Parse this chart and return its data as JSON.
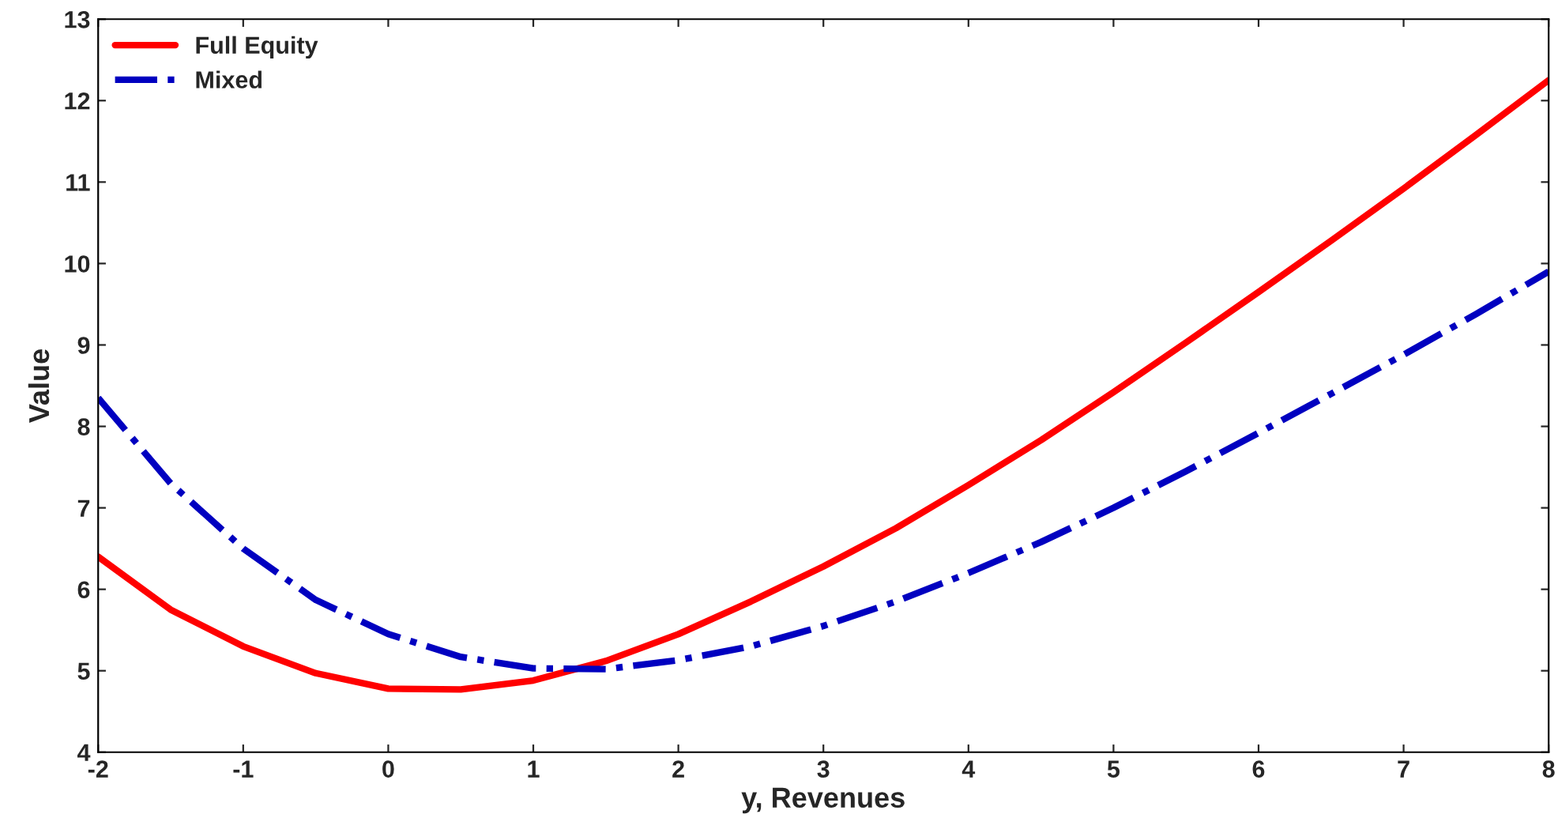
{
  "chart_data": {
    "type": "line",
    "xlabel": "y, Revenues",
    "ylabel": "Value",
    "x": [
      -2,
      -1.5,
      -1,
      -0.5,
      0,
      0.5,
      1,
      1.5,
      2,
      2.5,
      3,
      3.5,
      4,
      4.5,
      5,
      5.5,
      6,
      6.5,
      7,
      7.5,
      8
    ],
    "series": [
      {
        "name": "Full Equity",
        "color": "#ff0000",
        "line_style": "solid",
        "values": [
          6.4,
          5.75,
          5.3,
          4.97,
          4.78,
          4.77,
          4.88,
          5.12,
          5.45,
          5.85,
          6.28,
          6.75,
          7.28,
          7.83,
          8.42,
          9.03,
          9.65,
          10.28,
          10.92,
          11.58,
          12.25
        ]
      },
      {
        "name": "Mixed",
        "color": "#0000c0",
        "line_style": "dashed",
        "values": [
          8.35,
          7.3,
          6.5,
          5.87,
          5.45,
          5.17,
          5.03,
          5.02,
          5.13,
          5.3,
          5.55,
          5.85,
          6.2,
          6.58,
          7.0,
          7.45,
          7.92,
          8.4,
          8.88,
          9.38,
          9.9
        ]
      }
    ],
    "xlim": [
      -2,
      8
    ],
    "xticks": [
      -2,
      -1,
      0,
      1,
      2,
      3,
      4,
      5,
      6,
      7,
      8
    ],
    "ylim": [
      4,
      13
    ],
    "yticks": [
      4,
      5,
      6,
      7,
      8,
      9,
      10,
      11,
      12,
      13
    ],
    "grid": false,
    "legend": "top left",
    "marker": "none"
  }
}
